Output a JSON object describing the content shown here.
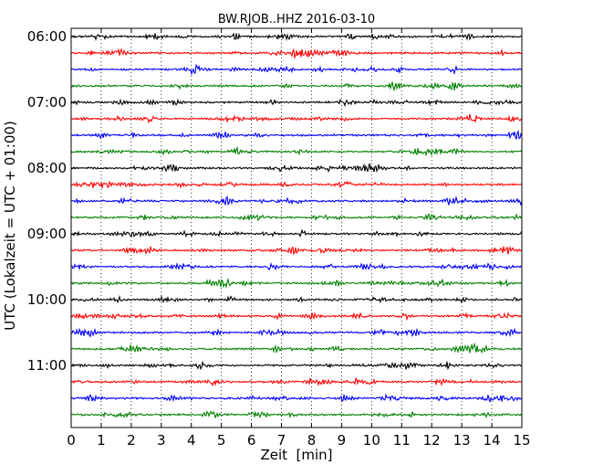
{
  "chart_data": {
    "type": "line",
    "chart_kind": "dayplot-seismogram",
    "title": "BW.RJOB..HHZ 2016-03-10",
    "xlabel": "Zeit  [min]",
    "ylabel": "UTC (Lokalzeit = UTC + 01:00)",
    "x_ticks": [
      "0",
      "1",
      "2",
      "3",
      "4",
      "5",
      "6",
      "7",
      "8",
      "9",
      "10",
      "11",
      "12",
      "13",
      "14",
      "15"
    ],
    "xlim": [
      0,
      15
    ],
    "y_tick_labels": [
      "06:00",
      "07:00",
      "08:00",
      "09:00",
      "10:00",
      "11:00"
    ],
    "minutes_per_trace": 15,
    "traces_per_hour": 4,
    "trace_count": 24,
    "start_time": "06:00",
    "end_time": "12:00",
    "trace_colors": [
      "#000000",
      "#ff0000",
      "#0000ff",
      "#008000"
    ],
    "x_grid": "dotted vertical at every minute",
    "series": [
      {
        "start": "06:00",
        "color": "#000000"
      },
      {
        "start": "06:15",
        "color": "#ff0000"
      },
      {
        "start": "06:30",
        "color": "#0000ff"
      },
      {
        "start": "06:45",
        "color": "#008000"
      },
      {
        "start": "07:00",
        "color": "#000000"
      },
      {
        "start": "07:15",
        "color": "#ff0000"
      },
      {
        "start": "07:30",
        "color": "#0000ff"
      },
      {
        "start": "07:45",
        "color": "#008000"
      },
      {
        "start": "08:00",
        "color": "#000000"
      },
      {
        "start": "08:15",
        "color": "#ff0000"
      },
      {
        "start": "08:30",
        "color": "#0000ff"
      },
      {
        "start": "08:45",
        "color": "#008000"
      },
      {
        "start": "09:00",
        "color": "#000000"
      },
      {
        "start": "09:15",
        "color": "#ff0000"
      },
      {
        "start": "09:30",
        "color": "#0000ff"
      },
      {
        "start": "09:45",
        "color": "#008000"
      },
      {
        "start": "10:00",
        "color": "#000000"
      },
      {
        "start": "10:15",
        "color": "#ff0000"
      },
      {
        "start": "10:30",
        "color": "#0000ff"
      },
      {
        "start": "10:45",
        "color": "#008000"
      },
      {
        "start": "11:00",
        "color": "#000000"
      },
      {
        "start": "11:15",
        "color": "#ff0000"
      },
      {
        "start": "11:30",
        "color": "#0000ff"
      },
      {
        "start": "11:45",
        "color": "#008000"
      }
    ]
  }
}
